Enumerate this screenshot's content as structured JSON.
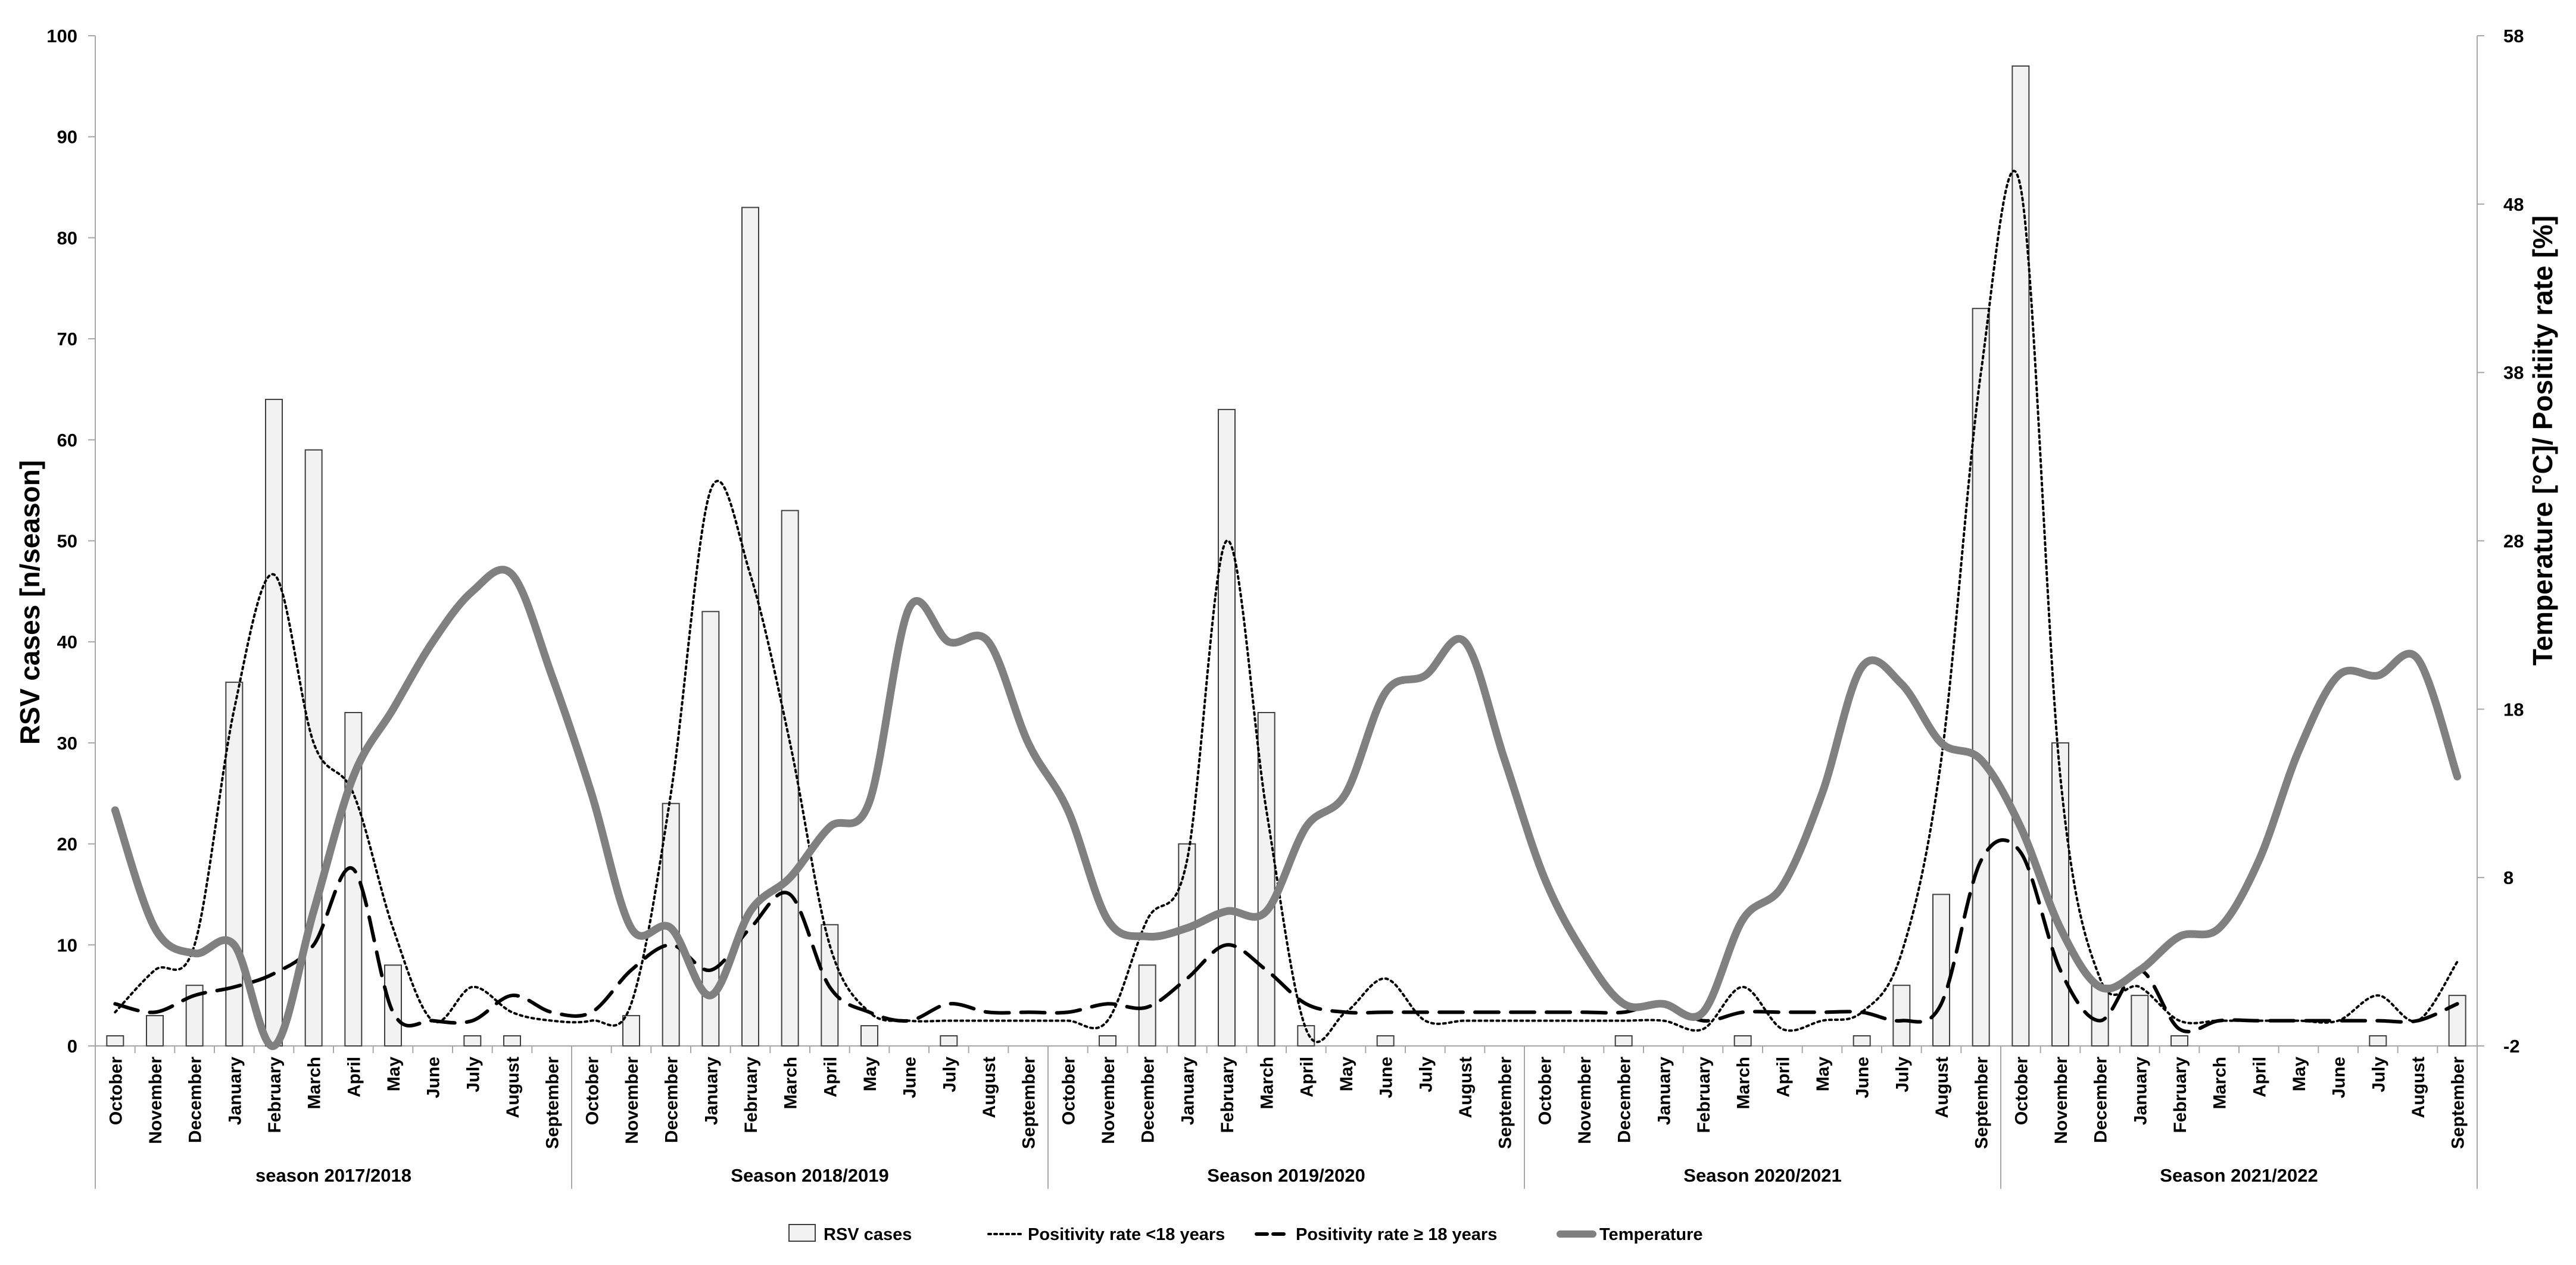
{
  "chart_data": {
    "type": "bar",
    "ylabel": "RSV cases [n/season]",
    "y2label": "Temperature [°C]/ Positiity rate [%]",
    "ylim": [
      0,
      100
    ],
    "y2lim": [
      -2,
      58
    ],
    "yticks": [
      "0",
      "10",
      "20",
      "30",
      "40",
      "50",
      "60",
      "70",
      "80",
      "90",
      "100"
    ],
    "y2ticks": [
      "-2",
      "8",
      "18",
      "28",
      "38",
      "48",
      "58"
    ],
    "categories": [
      "October",
      "November",
      "December",
      "January",
      "February",
      "March",
      "April",
      "May",
      "June",
      "July",
      "August",
      "September",
      "October",
      "November",
      "December",
      "January",
      "February",
      "March",
      "April",
      "May",
      "June",
      "July",
      "August",
      "September",
      "October",
      "November",
      "December",
      "January",
      "February",
      "March",
      "April",
      "May",
      "June",
      "July",
      "August",
      "September",
      "October",
      "November",
      "December",
      "January",
      "February",
      "March",
      "April",
      "May",
      "June",
      "July",
      "August",
      "September",
      "October",
      "November",
      "December",
      "January",
      "February",
      "March",
      "April",
      "May",
      "June",
      "July",
      "August",
      "September"
    ],
    "groups": [
      "season 2017/2018",
      "Season 2018/2019",
      "Season 2019/2020",
      "Season 2020/2021",
      "Season 2021/2022"
    ],
    "legend": [
      "RSV cases",
      "Positivity rate <18 years",
      "Positivity rate ≥ 18 years",
      "Temperature"
    ],
    "legend_position": "bottom",
    "series": [
      {
        "name": "RSV cases",
        "kind": "bar",
        "axis": "left",
        "color": "#f2f2f2",
        "values": [
          1,
          3,
          6,
          36,
          64,
          59,
          33,
          8,
          0,
          1,
          1,
          0,
          0,
          3,
          24,
          43,
          83,
          53,
          12,
          2,
          0,
          1,
          0,
          0,
          0,
          1,
          8,
          20,
          63,
          33,
          2,
          0,
          1,
          0,
          0,
          0,
          0,
          0,
          1,
          0,
          0,
          1,
          0,
          0,
          1,
          6,
          15,
          73,
          97,
          30,
          6,
          5,
          1,
          0,
          0,
          0,
          0,
          1,
          0,
          5
        ]
      },
      {
        "name": "Positivity rate <18 years",
        "kind": "line",
        "style": "dotted",
        "axis": "right",
        "color": "#000000",
        "values": [
          0,
          2.5,
          4,
          18,
          26,
          16,
          13,
          5,
          -0.5,
          1.5,
          0,
          -0.5,
          -0.5,
          0.5,
          13,
          31,
          26,
          16,
          4,
          0,
          -0.5,
          -0.5,
          -0.5,
          -0.5,
          -0.5,
          -0.5,
          5.5,
          9,
          28,
          12,
          -1,
          0,
          2,
          -0.5,
          -0.5,
          -0.5,
          -0.5,
          -0.5,
          -0.5,
          -0.5,
          -1,
          1.5,
          -1,
          -0.5,
          0,
          3.5,
          15,
          38,
          49,
          14,
          2,
          1.5,
          -0.5,
          -0.5,
          -0.5,
          -0.5,
          -0.5,
          1,
          -0.5,
          3
        ]
      },
      {
        "name": "Positivity rate ≥ 18 years",
        "kind": "line",
        "style": "dashed",
        "axis": "right",
        "color": "#000000",
        "values": [
          0.5,
          0,
          1,
          1.5,
          2.3,
          4,
          8.5,
          0,
          -0.5,
          -0.5,
          1,
          0,
          0,
          2.5,
          4,
          2.5,
          5,
          7,
          1.5,
          0,
          -0.5,
          0.5,
          0,
          0,
          0,
          0.5,
          0.3,
          2,
          4,
          2.5,
          0.5,
          0,
          0,
          0,
          0,
          0,
          0,
          0,
          0,
          0.5,
          -0.5,
          0,
          0,
          0,
          0,
          -0.5,
          0.5,
          9,
          9.5,
          2.5,
          -0.5,
          2.5,
          -1,
          -0.5,
          -0.5,
          -0.5,
          -0.5,
          -0.5,
          -0.5,
          0.5
        ]
      },
      {
        "name": "Temperature",
        "kind": "line",
        "style": "solid",
        "axis": "right",
        "color": "#808080",
        "values": [
          12,
          5,
          3.5,
          4,
          -2,
          6,
          14,
          18,
          22,
          25,
          26,
          20,
          13,
          5,
          5,
          1,
          6,
          8,
          11,
          12.5,
          24,
          22,
          22,
          16,
          12,
          5.5,
          4.5,
          5,
          6,
          6,
          11,
          13,
          19,
          20,
          22,
          15,
          8,
          3.5,
          0.5,
          0.5,
          0,
          5.5,
          7.5,
          13,
          20.5,
          19.5,
          16,
          15,
          11,
          5,
          1.5,
          2.5,
          4.5,
          5,
          9,
          15.5,
          20,
          20,
          21,
          14
        ]
      }
    ]
  }
}
